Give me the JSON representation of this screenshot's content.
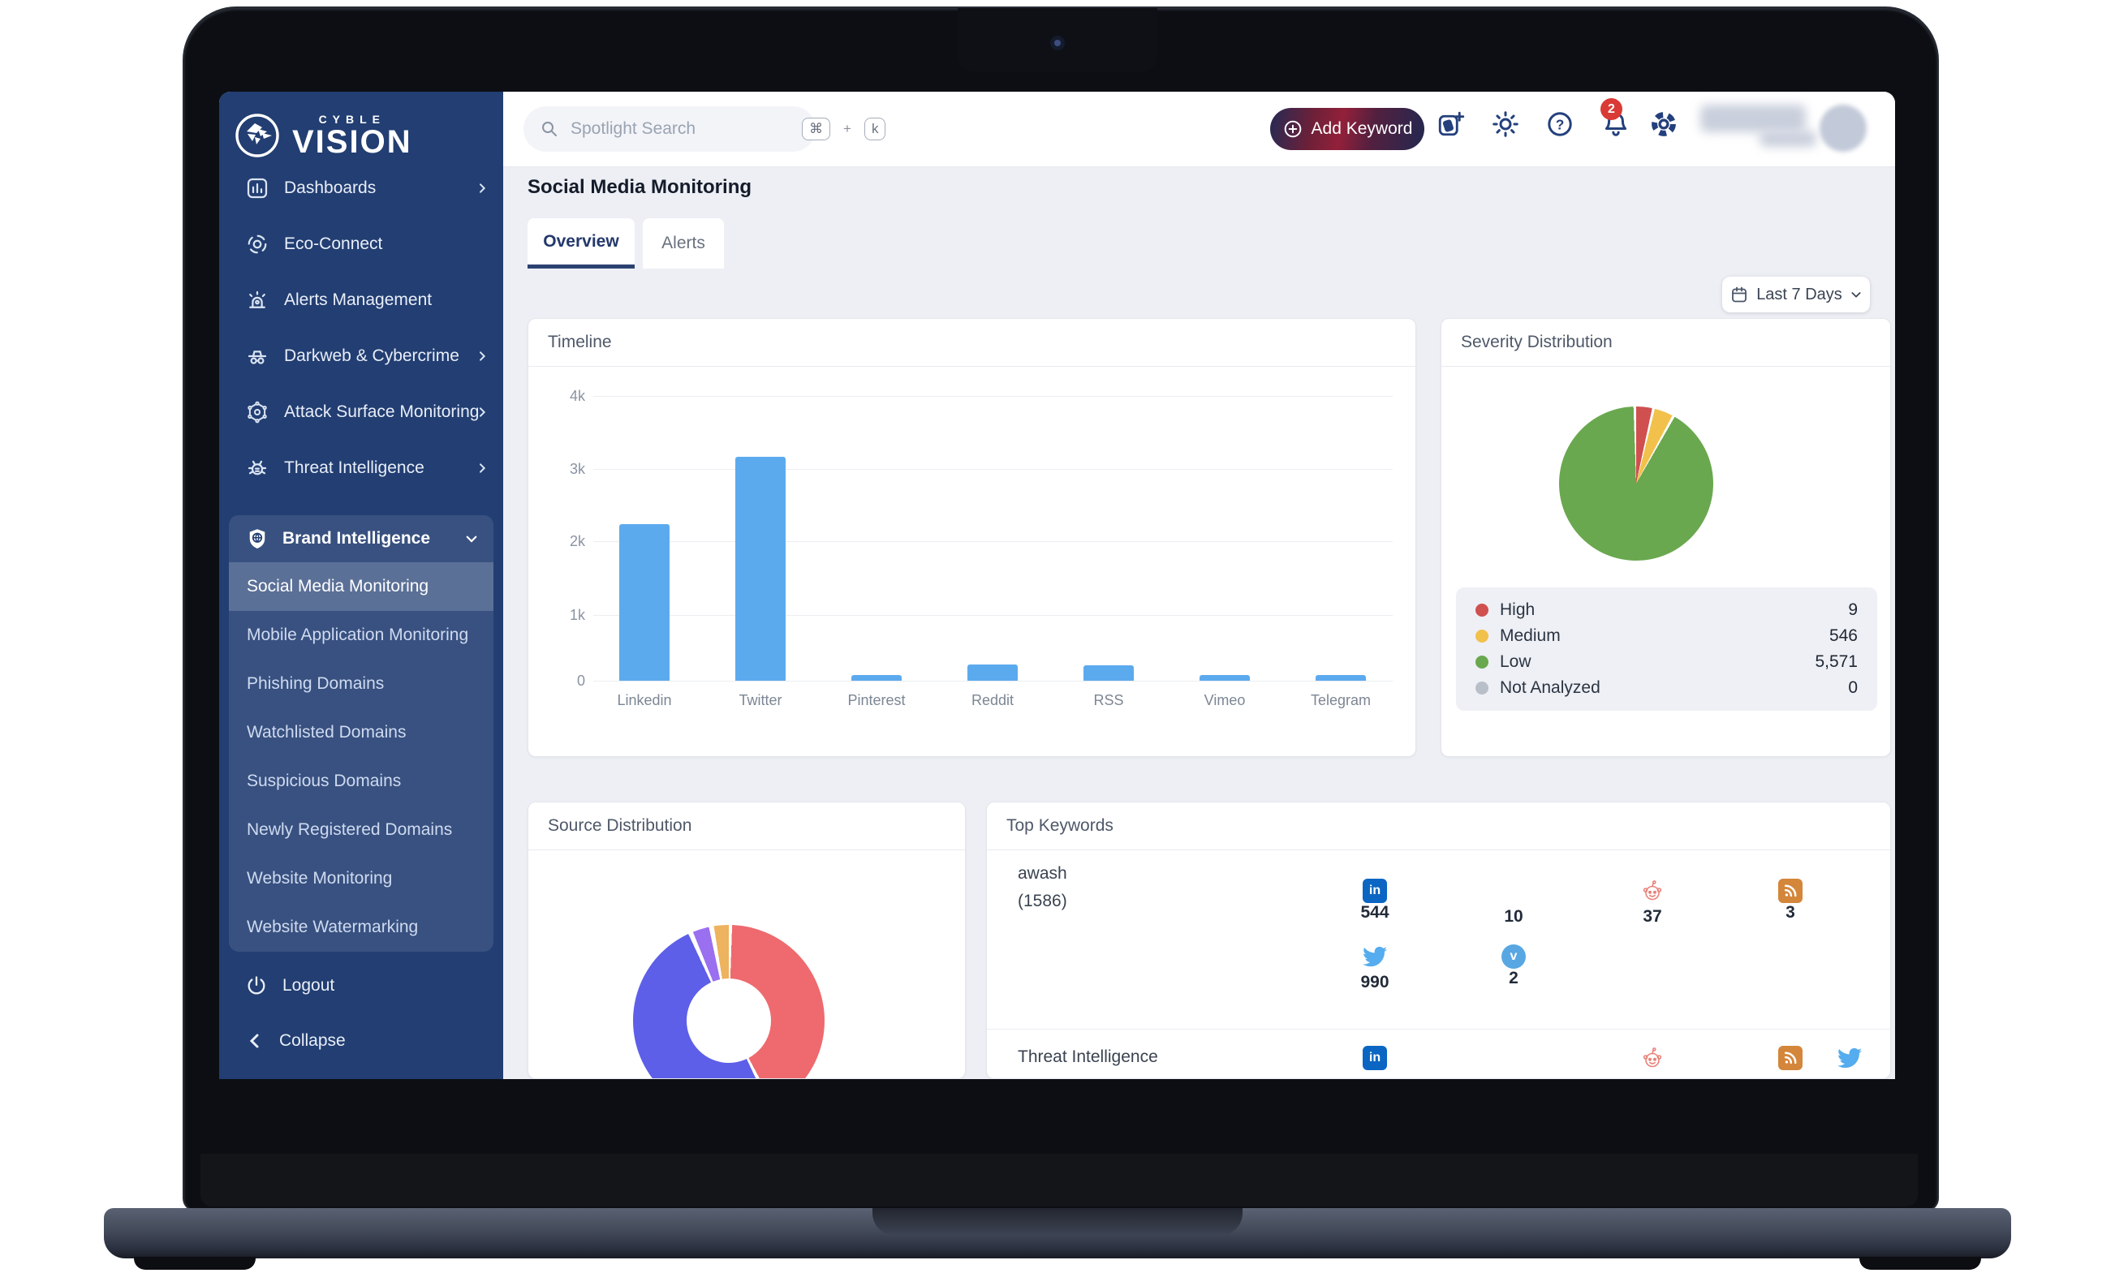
{
  "brand": {
    "logo_top": "CYBLE",
    "logo_main": "VISION"
  },
  "sidebar": {
    "items": [
      {
        "label": "Dashboards",
        "chevron": true
      },
      {
        "label": "Eco-Connect",
        "chevron": false
      },
      {
        "label": "Alerts Management",
        "chevron": false
      },
      {
        "label": "Darkweb & Cybercrime",
        "chevron": true
      },
      {
        "label": "Attack Surface Monitoring",
        "chevron": true
      },
      {
        "label": "Threat Intelligence",
        "chevron": true
      }
    ],
    "brand_group": {
      "label": "Brand Intelligence",
      "items": [
        "Social Media Monitoring",
        "Mobile Application Monitoring",
        "Phishing Domains",
        "Watchlisted Domains",
        "Suspicious Domains",
        "Newly Registered Domains",
        "Website Monitoring",
        "Website Watermarking"
      ],
      "active_item": "Social Media Monitoring"
    },
    "logout": "Logout",
    "collapse": "Collapse"
  },
  "topbar": {
    "search_placeholder": "Spotlight Search",
    "shortcut": {
      "mod": "⌘",
      "plus": "+",
      "key": "k"
    },
    "add_keyword": "Add Keyword",
    "notification_count": "2"
  },
  "page": {
    "title": "Social Media Monitoring",
    "tabs": [
      {
        "label": "Overview",
        "active": true
      },
      {
        "label": "Alerts",
        "active": false
      }
    ],
    "date_filter": "Last 7 Days"
  },
  "cards": {
    "timeline": {
      "title": "Timeline"
    },
    "severity": {
      "title": "Severity Distribution",
      "legend": [
        {
          "label": "High",
          "value": "9",
          "color": "#d05050"
        },
        {
          "label": "Medium",
          "value": "546",
          "color": "#f2c14b"
        },
        {
          "label": "Low",
          "value": "5,571",
          "color": "#6aa84f"
        },
        {
          "label": "Not Analyzed",
          "value": "0",
          "color": "#b9bfc9"
        }
      ]
    },
    "source": {
      "title": "Source Distribution"
    },
    "keywords": {
      "title": "Top Keywords",
      "rows": [
        {
          "keyword": "awash",
          "count": "(1586)",
          "metrics": [
            {
              "icon": "linkedin",
              "value": "544"
            },
            {
              "icon": "none",
              "value": "10"
            },
            {
              "icon": "reddit",
              "value": "37"
            },
            {
              "icon": "rss",
              "value": "3"
            },
            {
              "icon": "twitter",
              "value": "990"
            },
            {
              "icon": "vimeo",
              "value": "2"
            }
          ]
        },
        {
          "keyword": "Threat Intelligence",
          "icons": [
            "linkedin",
            "reddit",
            "rss",
            "twitter"
          ]
        }
      ]
    }
  },
  "chart_data": [
    {
      "type": "bar",
      "title": "Timeline",
      "categories": [
        "Linkedin",
        "Twitter",
        "Pinterest",
        "Reddit",
        "RSS",
        "Vimeo",
        "Telegram"
      ],
      "values": [
        2200,
        3150,
        80,
        230,
        215,
        80,
        80
      ],
      "xlabel": "",
      "ylabel": "",
      "ylim": [
        0,
        4000
      ],
      "y_ticks": [
        "0",
        "1k",
        "2k",
        "3k",
        "4k"
      ],
      "grid": true,
      "bar_color": "#5caaee"
    },
    {
      "type": "pie",
      "title": "Severity Distribution",
      "labels": [
        "High",
        "Medium",
        "Low",
        "Not Analyzed"
      ],
      "values": [
        9,
        546,
        5571,
        0
      ],
      "colors": [
        "#d05050",
        "#f2c14b",
        "#6aa84f",
        "#b9bfc9"
      ],
      "display_angles_deg": [
        12,
        14,
        328,
        0
      ],
      "legend_position": "bottom"
    },
    {
      "type": "pie",
      "subtype": "donut",
      "title": "Source Distribution",
      "labels_visible": false,
      "segments": [
        {
          "color": "#ee6a6e",
          "angle_deg": 150
        },
        {
          "color": "#5d5fe8",
          "angle_deg": 180
        },
        {
          "color": "#9a6ff0",
          "angle_deg": 10
        },
        {
          "color": "#edb35e",
          "angle_deg": 9
        }
      ]
    }
  ],
  "colors": {
    "sidebar_navy": "#223e72",
    "accent_navy": "#24407c",
    "bar_blue": "#5caaee",
    "badge_red": "#d93a35",
    "linkedin": "#0a66c2",
    "rss": "#d4863b",
    "twitter": "#55acee",
    "vimeo": "#58a7e3",
    "reddit": "#e8837a"
  }
}
